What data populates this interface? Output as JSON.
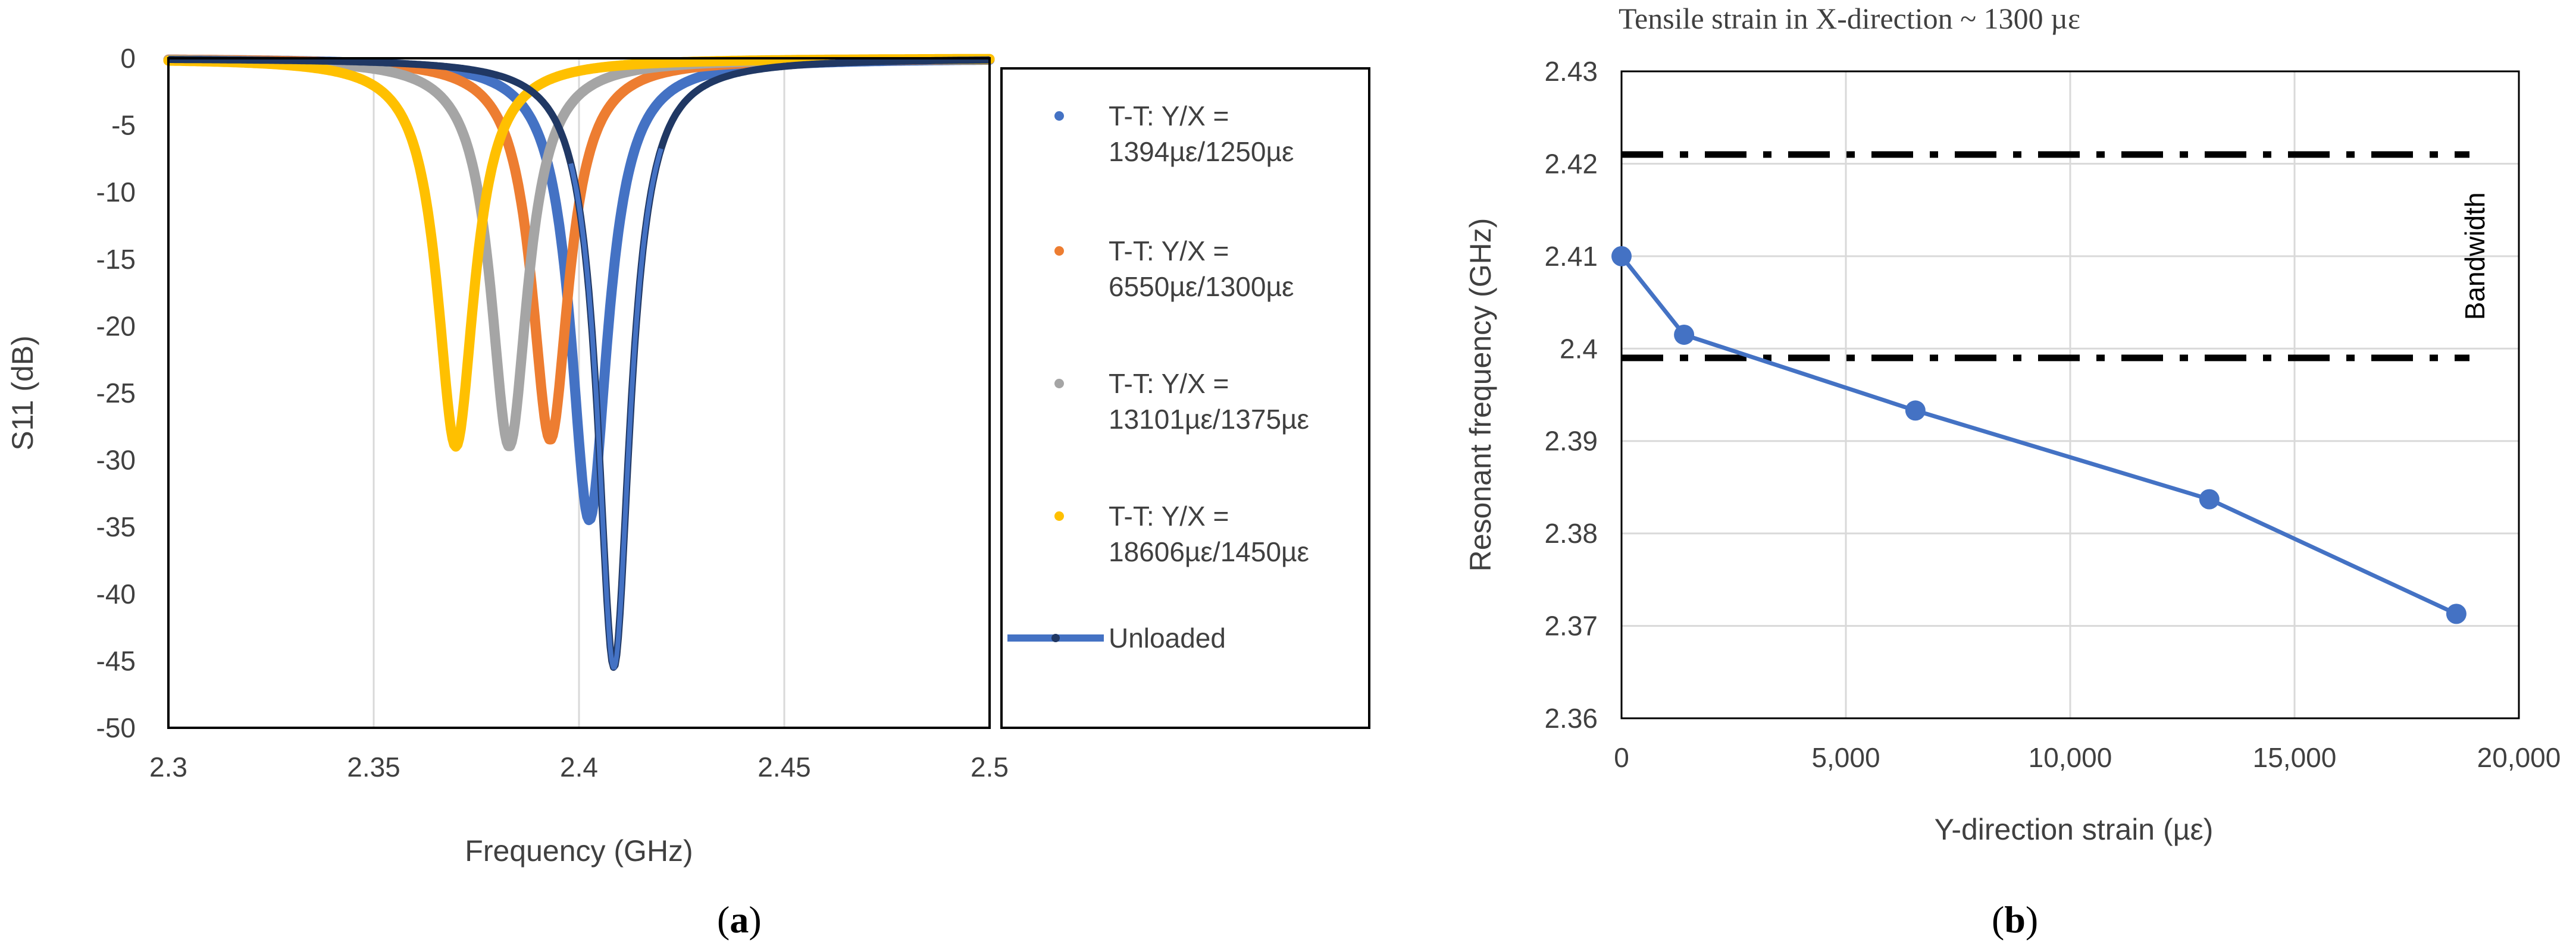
{
  "chart_data": [
    {
      "panel": "a",
      "type": "line",
      "caption_letter": "a",
      "title": "",
      "xlabel": "Frequency (GHz)",
      "ylabel": "S11 (dB)",
      "xlim": [
        2.3,
        2.5
      ],
      "ylim": [
        -50,
        0
      ],
      "xticks": [
        2.3,
        2.35,
        2.4,
        2.45,
        2.5
      ],
      "xtick_labels": [
        "2.3",
        "2.35",
        "2.4",
        "2.45",
        "2.5"
      ],
      "yticks": [
        0,
        -5,
        -10,
        -15,
        -20,
        -25,
        -30,
        -35,
        -40,
        -45,
        -50
      ],
      "ytick_labels": [
        "0",
        "-5",
        "-10",
        "-15",
        "-20",
        "-25",
        "-30",
        "-35",
        "-40",
        "-45",
        "-50"
      ],
      "grid": "vertical",
      "legend_position": "right",
      "series": [
        {
          "name": "T-T: Y/X = 1394µε/1250µε",
          "legend_lines": [
            "T-T: Y/X =",
            "1394µε/1250µε"
          ],
          "color": "#4472C4",
          "style": "dots",
          "f0": 2.4025,
          "min": -34.5,
          "q": 0.0055
        },
        {
          "name": "T-T: Y/X = 6550µε/1300µε",
          "legend_lines": [
            "T-T: Y/X =",
            "6550µε/1300µε"
          ],
          "color": "#ED7D31",
          "style": "dots",
          "f0": 2.393,
          "min": -28.5,
          "q": 0.0055
        },
        {
          "name": "T-T: Y/X = 13101µε/1375µε",
          "legend_lines": [
            "T-T: Y/X =",
            "13101µε/1375µε"
          ],
          "color": "#A5A5A5",
          "style": "dots",
          "f0": 2.383,
          "min": -29.0,
          "q": 0.0055
        },
        {
          "name": "T-T: Y/X = 18606µε/1450µε",
          "legend_lines": [
            "T-T: Y/X =",
            "18606µε/1450µε"
          ],
          "color": "#FFC000",
          "style": "dots",
          "f0": 2.37,
          "min": -29.0,
          "q": 0.0055
        },
        {
          "name": "Unloaded",
          "legend_lines": [
            "Unloaded"
          ],
          "color": "#4472C4",
          "style": "line",
          "f0": 2.4085,
          "min": -45.5,
          "q": 0.0048
        }
      ],
      "dark_tail_color": "#203864"
    },
    {
      "panel": "b",
      "type": "line",
      "caption_letter": "b",
      "title": "Tensile strain in X-direction ~ 1300 µε",
      "xlabel": "Y-direction strain (µε)",
      "ylabel": "Resonant frequency (GHz)",
      "xlim": [
        0,
        20000
      ],
      "ylim": [
        2.36,
        2.43
      ],
      "xticks": [
        0,
        5000,
        10000,
        15000,
        20000
      ],
      "xtick_labels": [
        "0",
        "5,000",
        "10,000",
        "15,000",
        "20,000"
      ],
      "yticks": [
        2.36,
        2.37,
        2.38,
        2.39,
        2.4,
        2.41,
        2.42,
        2.43
      ],
      "ytick_labels": [
        "2.36",
        "2.37",
        "2.38",
        "2.39",
        "2.4",
        "2.41",
        "2.42",
        "2.43"
      ],
      "grid": "both",
      "series": [
        {
          "name": "Resonant frequency",
          "color": "#4472C4",
          "x": [
            0,
            1394,
            6550,
            13101,
            18606
          ],
          "y": [
            2.41,
            2.4015,
            2.3933,
            2.3837,
            2.3713
          ]
        }
      ],
      "bandwidth": {
        "label": "Bandwidth",
        "upper": 2.421,
        "lower": 2.399
      }
    }
  ]
}
